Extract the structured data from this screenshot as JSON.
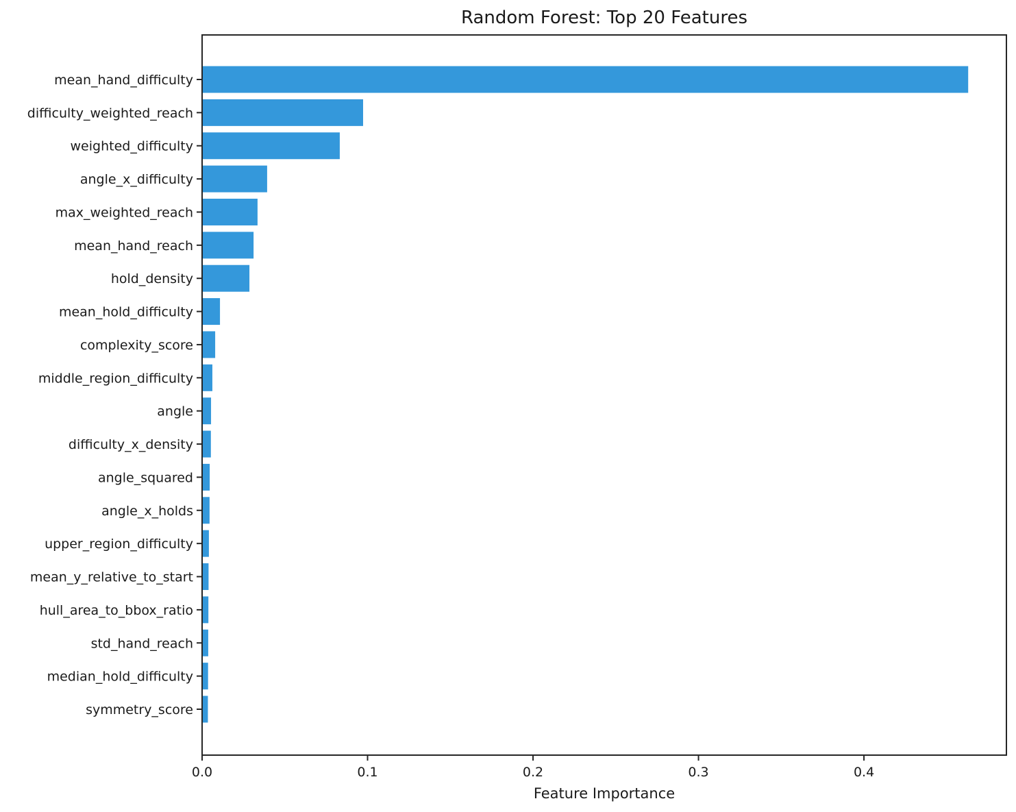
{
  "figure": {
    "background": "#ffffff"
  },
  "chart_data": {
    "type": "bar",
    "orientation": "horizontal",
    "title": "Random Forest: Top 20 Features",
    "xlabel": "Feature Importance",
    "ylabel": "",
    "categories": [
      "mean_hand_difficulty",
      "difficulty_weighted_reach",
      "weighted_difficulty",
      "angle_x_difficulty",
      "max_weighted_reach",
      "mean_hand_reach",
      "hold_density",
      "mean_hold_difficulty",
      "complexity_score",
      "middle_region_difficulty",
      "angle",
      "difficulty_x_density",
      "angle_squared",
      "angle_x_holds",
      "upper_region_difficulty",
      "mean_y_relative_to_start",
      "hull_area_to_bbox_ratio",
      "std_hand_reach",
      "median_hold_difficulty",
      "symmetry_score"
    ],
    "values": [
      0.463,
      0.0973,
      0.0832,
      0.0393,
      0.0335,
      0.0311,
      0.0286,
      0.0108,
      0.0079,
      0.0062,
      0.0054,
      0.0053,
      0.0046,
      0.0045,
      0.0041,
      0.0039,
      0.0038,
      0.0037,
      0.0036,
      0.0035
    ],
    "xlim": [
      0,
      0.4861
    ],
    "xticks": [
      0.0,
      0.1,
      0.2,
      0.3,
      0.4
    ],
    "xtick_labels": [
      "0.0",
      "0.1",
      "0.2",
      "0.3",
      "0.4"
    ],
    "grid": false,
    "legend": null,
    "bar_color": "#3498db",
    "text_color": "#1a1a1a",
    "axis_color": "#262626"
  }
}
